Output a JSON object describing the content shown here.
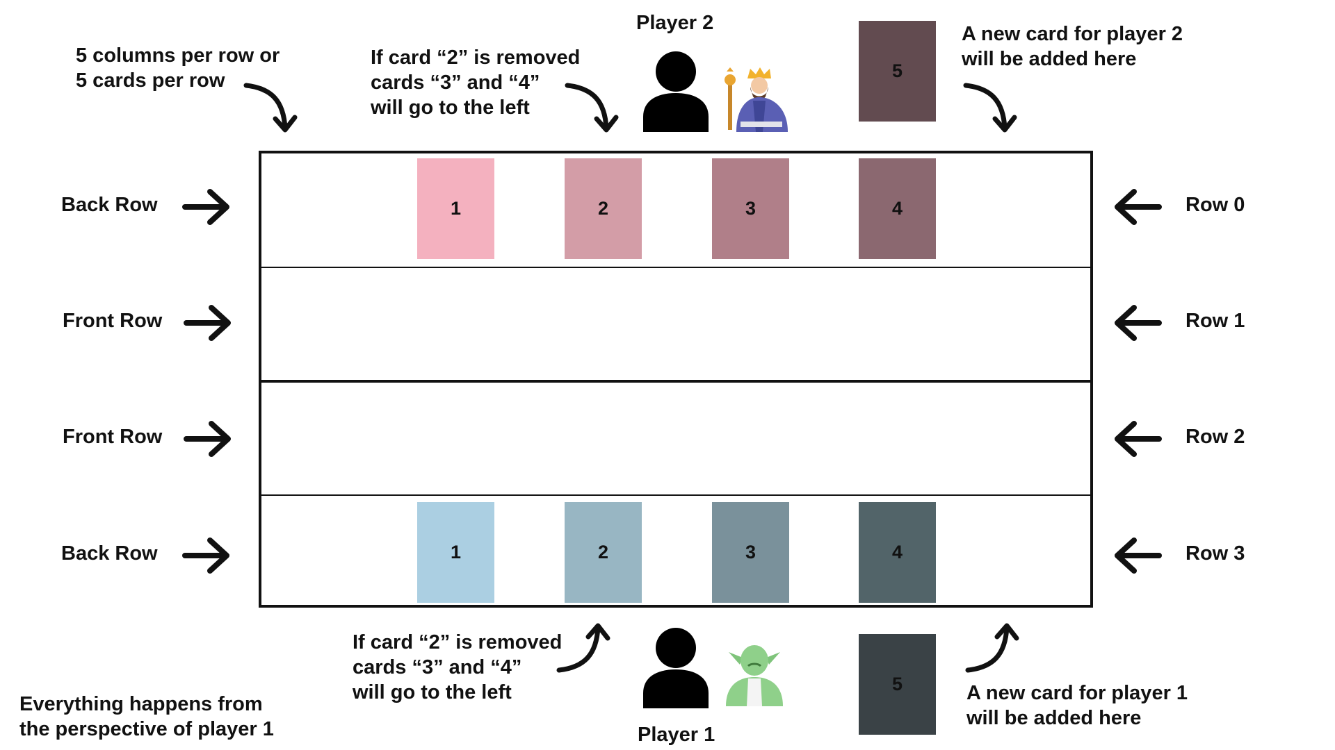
{
  "players": {
    "player2": {
      "name": "Player 2",
      "icon": "person-icon",
      "avatar": "king-icon"
    },
    "player1": {
      "name": "Player 1",
      "icon": "person-icon",
      "avatar": "goblin-icon"
    }
  },
  "notes": {
    "columns": "5 columns per row or\n5 cards per row",
    "removed_top": "If card “2” is removed\ncards “3” and “4”\nwill go to the left",
    "removed_bottom": "If card “2” is removed\ncards “3” and “4”\nwill go to the left",
    "new_card_p2": "A new card for player 2\nwill be added here",
    "new_card_p1": "A new card for player 1\nwill be added here",
    "perspective": "Everything happens from\nthe perspective of player 1"
  },
  "rows_left": [
    "Back Row",
    "Front Row",
    "Front Row",
    "Back Row"
  ],
  "rows_right": [
    "Row 0",
    "Row 1",
    "Row 2",
    "Row 3"
  ],
  "cards_player2": [
    {
      "label": "1",
      "color": "#f4b1bf"
    },
    {
      "label": "2",
      "color": "#d39da7"
    },
    {
      "label": "3",
      "color": "#b07f89"
    },
    {
      "label": "4",
      "color": "#8b6870"
    }
  ],
  "new_card_player2": {
    "label": "5",
    "color": "#624b50"
  },
  "cards_player1": [
    {
      "label": "1",
      "color": "#abcfe2"
    },
    {
      "label": "2",
      "color": "#98b6c3"
    },
    {
      "label": "3",
      "color": "#7a919b"
    },
    {
      "label": "4",
      "color": "#526469"
    }
  ],
  "new_card_player1": {
    "label": "5",
    "color": "#3a4246"
  }
}
